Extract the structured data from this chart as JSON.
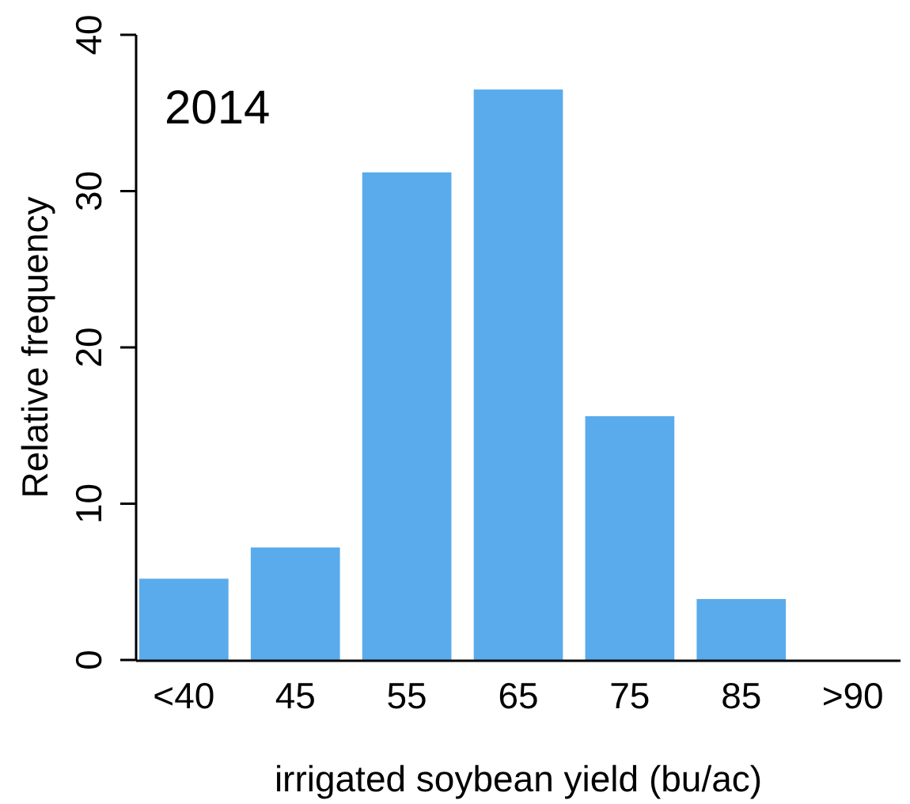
{
  "chart_data": {
    "type": "bar",
    "xlabel": "irrigated soybean yield (bu/ac)",
    "ylabel": "Relative frequency",
    "categories": [
      "<40",
      "45",
      "55",
      "65",
      "75",
      "85",
      ">90"
    ],
    "values": [
      5.2,
      7.2,
      31.2,
      36.5,
      15.6,
      3.9,
      0
    ],
    "color": "#5aabeb",
    "ylim": [
      0,
      40
    ],
    "yticks": [
      0,
      10,
      20,
      30,
      40
    ],
    "grid": false,
    "annotations": [
      "2014"
    ]
  }
}
